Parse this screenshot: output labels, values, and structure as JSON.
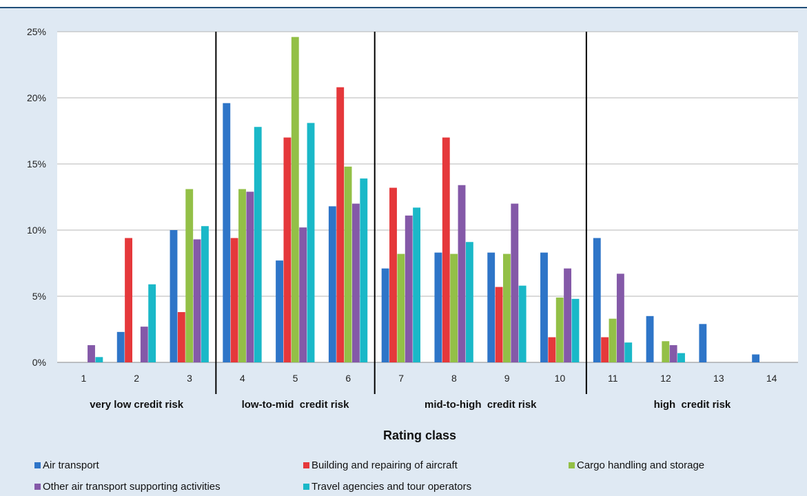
{
  "chart_data": {
    "type": "bar",
    "title": "",
    "xlabel": "Rating class",
    "ylabel": "",
    "ylim": [
      0,
      25
    ],
    "yticks": [
      "0%",
      "5%",
      "10%",
      "15%",
      "20%",
      "25%"
    ],
    "grid": true,
    "legend_position": "bottom",
    "categories": [
      "1",
      "2",
      "3",
      "4",
      "5",
      "6",
      "7",
      "8",
      "9",
      "10",
      "11",
      "12",
      "13",
      "14"
    ],
    "groups": [
      {
        "label": "very low credit risk",
        "from": "1",
        "to": "3"
      },
      {
        "label": "low-to-mid  credit risk",
        "from": "4",
        "to": "6"
      },
      {
        "label": "mid-to-high  credit risk",
        "from": "7",
        "to": "10"
      },
      {
        "label": "high  credit risk",
        "from": "11",
        "to": "14"
      }
    ],
    "series": [
      {
        "name": "Air transport",
        "color": "#2e75c8",
        "values": [
          0,
          2.3,
          10.0,
          19.6,
          7.7,
          11.8,
          7.1,
          8.3,
          8.3,
          8.3,
          9.4,
          3.5,
          2.9,
          0.6
        ]
      },
      {
        "name": "Building and repairing of aircraft",
        "color": "#e5383b",
        "values": [
          0,
          9.4,
          3.8,
          9.4,
          17.0,
          20.8,
          13.2,
          17.0,
          5.7,
          1.9,
          1.9,
          0,
          0,
          0
        ]
      },
      {
        "name": "Cargo handling and storage",
        "color": "#93c047",
        "values": [
          0,
          0,
          13.1,
          13.1,
          24.6,
          14.8,
          8.2,
          8.2,
          8.2,
          4.9,
          3.3,
          1.6,
          0,
          0
        ]
      },
      {
        "name": "Other air transport supporting activities",
        "color": "#8459a8",
        "values": [
          1.3,
          2.7,
          9.3,
          12.9,
          10.2,
          12.0,
          11.1,
          13.4,
          12.0,
          7.1,
          6.7,
          1.3,
          0,
          0
        ]
      },
      {
        "name": "Travel agencies and tour operators",
        "color": "#1ab8c8",
        "values": [
          0.4,
          5.9,
          10.3,
          17.8,
          18.1,
          13.9,
          11.7,
          9.1,
          5.8,
          4.8,
          1.5,
          0.7,
          0,
          0
        ]
      }
    ]
  }
}
